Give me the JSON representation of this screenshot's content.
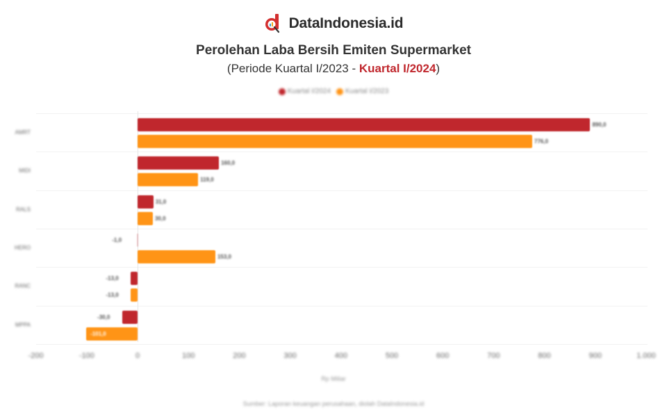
{
  "brand": {
    "name": "DataIndonesia.id",
    "logo_color": "#d32f2f"
  },
  "header": {
    "title": "Perolehan Laba Bersih Emiten Supermarket",
    "subtitle_prefix": "(Periode Kuartal I/2023 - ",
    "subtitle_highlight": "Kuartal I/2024",
    "subtitle_suffix": ")"
  },
  "legend": [
    {
      "label": "Kuartal I/2024",
      "color": "#c0272d"
    },
    {
      "label": "Kuartal I/2023",
      "color": "#ff9416"
    }
  ],
  "xaxis": {
    "label": "Rp Miliar",
    "ticks": [
      "-200",
      "-100",
      "0",
      "100",
      "200",
      "300",
      "400",
      "500",
      "600",
      "700",
      "800",
      "900",
      "1.000"
    ]
  },
  "source": "Sumber: Laporan keuangan perusahaan, diolah DataIndonesia.id",
  "chart_data": {
    "type": "bar",
    "orientation": "horizontal",
    "title": "Perolehan Laba Bersih Emiten Supermarket",
    "subtitle": "(Periode Kuartal I/2023 - Kuartal I/2024)",
    "categories": [
      "AMRT",
      "MIDI",
      "RALS",
      "HERO",
      "RANC",
      "MPPA"
    ],
    "series": [
      {
        "name": "Kuartal I/2024",
        "color": "#c0272d",
        "values": [
          890,
          160,
          31,
          -1,
          -13,
          -30
        ]
      },
      {
        "name": "Kuartal I/2023",
        "color": "#ff9416",
        "values": [
          776,
          119,
          30,
          153,
          -13,
          -101
        ]
      }
    ],
    "value_labels": {
      "Kuartal I/2024": [
        "890,0",
        "160,0",
        "31,0",
        "-1,0",
        "-13,0",
        "-30,0"
      ],
      "Kuartal I/2023": [
        "776,0",
        "119,0",
        "30,0",
        "153,0",
        "-13,0",
        "-101,0"
      ]
    },
    "xlabel": "Rp Miliar",
    "ylabel": "",
    "xlim": [
      -200,
      1000
    ],
    "grid": true,
    "legend_position": "top"
  }
}
